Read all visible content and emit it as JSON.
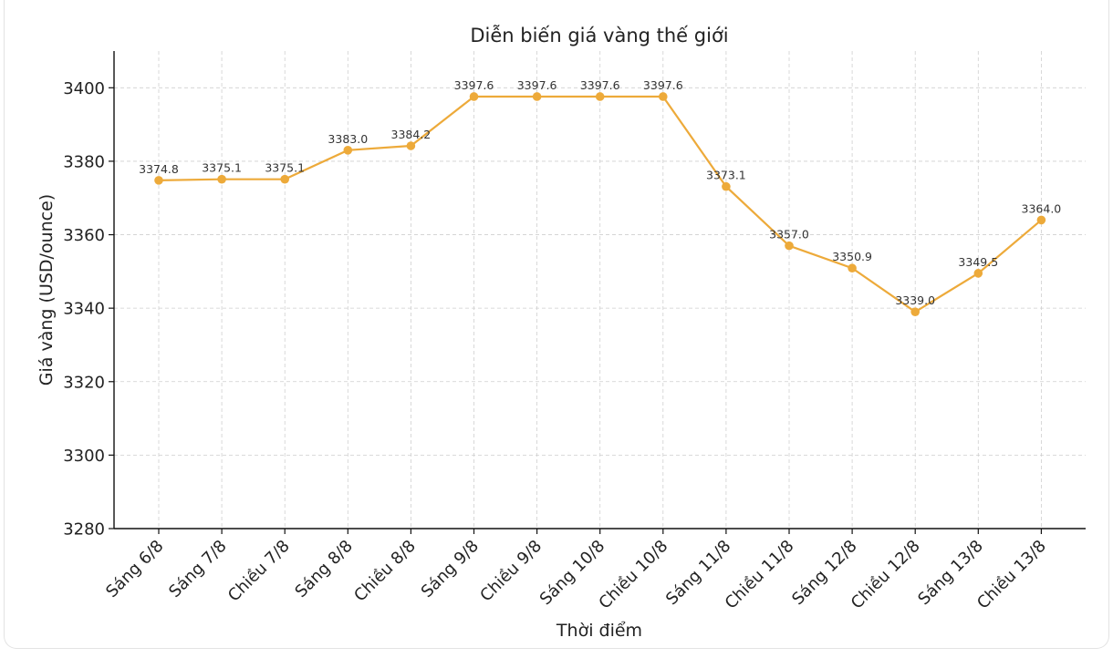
{
  "chart_data": {
    "type": "line",
    "title": "Diễn biến giá vàng thế giới",
    "xlabel": "Thời điểm",
    "ylabel": "Giá vàng (USD/ounce)",
    "categories": [
      "Sáng 6/8",
      "Sáng 7/8",
      "Chiều 7/8",
      "Sáng 8/8",
      "Chiều 8/8",
      "Sáng 9/8",
      "Chiều 9/8",
      "Sáng 10/8",
      "Chiều 10/8",
      "Sáng 11/8",
      "Chiều 11/8",
      "Sáng 12/8",
      "Chiều 12/8",
      "Sáng 13/8",
      "Chiều 13/8"
    ],
    "series": [
      {
        "values": [
          3374.8,
          3375.1,
          3375.1,
          3383.0,
          3384.2,
          3397.6,
          3397.6,
          3397.6,
          3397.6,
          3373.1,
          3357.0,
          3350.9,
          3339.0,
          3349.5,
          3364.0
        ],
        "color": "#EDAA3A"
      }
    ],
    "data_labels": [
      "3374.8",
      "3375.1",
      "3375.1",
      "3383.0",
      "3384.2",
      "3397.6",
      "3397.6",
      "3397.6",
      "3397.6",
      "3373.1",
      "3357.0",
      "3350.9",
      "3339.0",
      "3349.5",
      "3364.0"
    ],
    "ylim": [
      3280,
      3410
    ],
    "yticks": [
      3280,
      3300,
      3320,
      3340,
      3360,
      3380,
      3400
    ],
    "ytick_labels": [
      "3280",
      "3300",
      "3320",
      "3340",
      "3360",
      "3380",
      "3400"
    ],
    "grid": true,
    "legend": "none"
  }
}
